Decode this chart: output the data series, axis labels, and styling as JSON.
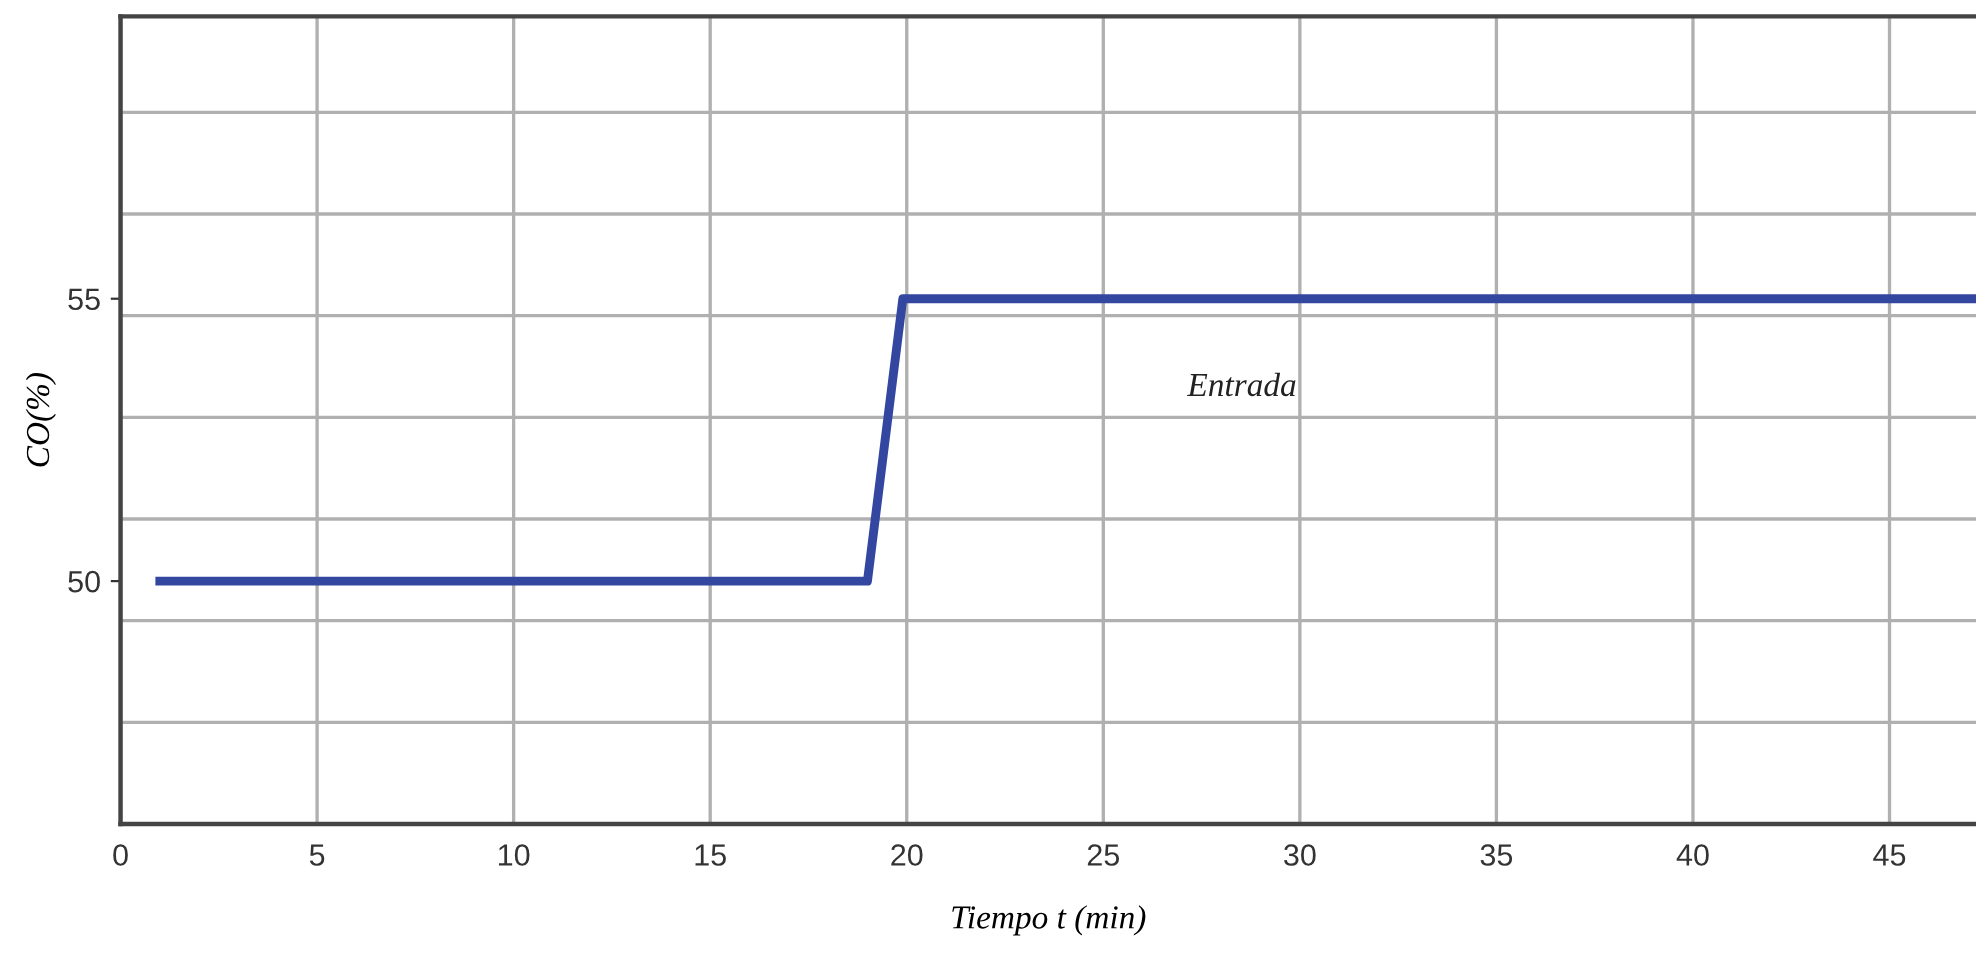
{
  "chart_data": {
    "type": "line",
    "xlabel": "Tiempo t (min)",
    "ylabel": "CO(%)",
    "series": [
      {
        "name": "Entrada",
        "color": "#3447a0",
        "x": [
          1,
          19,
          19.9,
          47.2
        ],
        "values": [
          50,
          50,
          55,
          55
        ]
      }
    ],
    "xlim": [
      0,
      47.2
    ],
    "xticks": [
      0,
      5,
      10,
      15,
      20,
      25,
      30,
      35,
      40,
      45
    ],
    "ylim": [
      45.7,
      60
    ],
    "yticks": [
      {
        "value": 47.5,
        "label": null
      },
      {
        "value": 49.3,
        "label": null
      },
      50,
      {
        "value": 51.1,
        "label": null
      },
      {
        "value": 52.9,
        "label": null
      },
      {
        "value": 54.7,
        "label": null
      },
      55,
      {
        "value": 56.5,
        "label": null
      },
      {
        "value": 58.3,
        "label": null
      }
    ],
    "grid": true,
    "marker": "none",
    "line_style": "solid"
  }
}
